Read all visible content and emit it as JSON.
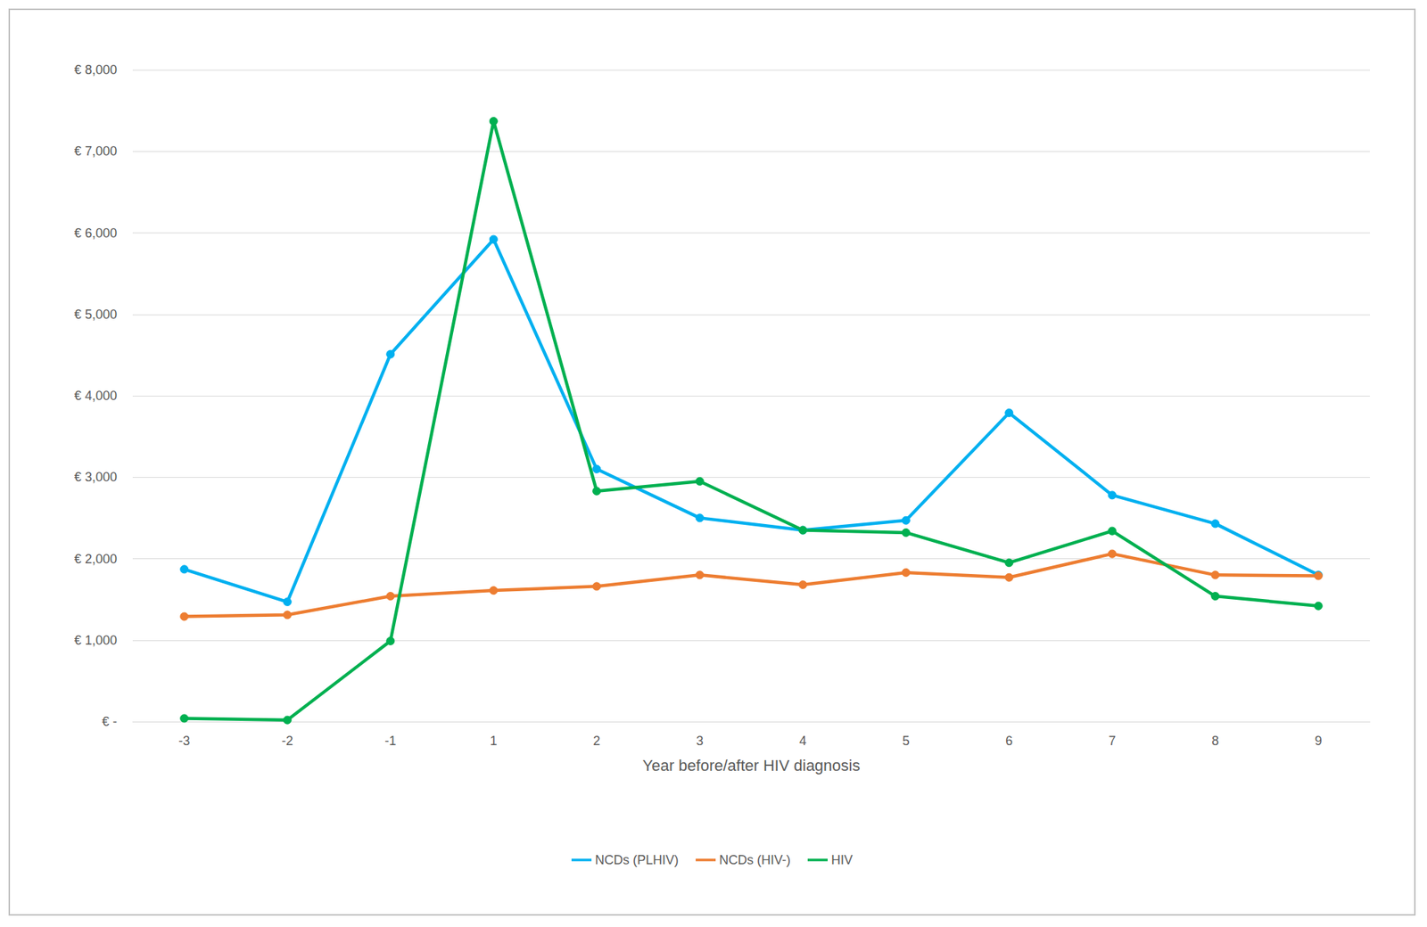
{
  "chart_data": {
    "type": "line",
    "x_label": "Year before/after HIV diagnosis",
    "categories": [
      "-3",
      "-2",
      "-1",
      "1",
      "2",
      "3",
      "4",
      "5",
      "6",
      "7",
      "8",
      "9"
    ],
    "series": [
      {
        "name": "NCDs (PLHIV)",
        "color": "#00B0F0",
        "marker": "circle",
        "values": [
          1870,
          1470,
          4510,
          5920,
          3100,
          2500,
          2350,
          2470,
          3790,
          2780,
          2430,
          1800
        ]
      },
      {
        "name": "NCDs (HIV-)",
        "color": "#ED7D31",
        "marker": "circle",
        "values": [
          1290,
          1310,
          1540,
          1610,
          1660,
          1800,
          1680,
          1830,
          1770,
          2060,
          1800,
          1790
        ]
      },
      {
        "name": "HIV",
        "color": "#00B050",
        "marker": "circle",
        "values": [
          40,
          20,
          990,
          7370,
          2830,
          2950,
          2350,
          2320,
          1950,
          2340,
          1540,
          1420
        ]
      }
    ],
    "ylim": [
      0,
      8000
    ],
    "yticks": [
      {
        "value": 0,
        "label": "€ -"
      },
      {
        "value": 1000,
        "label": "€ 1,000"
      },
      {
        "value": 2000,
        "label": "€ 2,000"
      },
      {
        "value": 3000,
        "label": "€ 3,000"
      },
      {
        "value": 4000,
        "label": "€ 4,000"
      },
      {
        "value": 5000,
        "label": "€ 5,000"
      },
      {
        "value": 6000,
        "label": "€ 6,000"
      },
      {
        "value": 7000,
        "label": "€ 7,000"
      },
      {
        "value": 8000,
        "label": "€ 8,000"
      }
    ],
    "grid": true,
    "legend": "bottom"
  }
}
